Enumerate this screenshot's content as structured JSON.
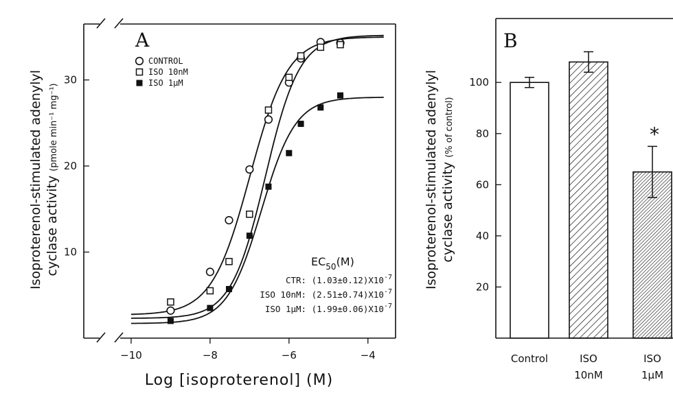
{
  "chart_data": [
    {
      "type": "scatter",
      "panel_label": "A",
      "xlabel": "Log [isoproterenol] (M)",
      "ylabel": "Isoproterenol-stimulated adenylyl",
      "ylabel2": "cyclase activity",
      "ylabel_units": "(pmole min⁻¹ mg⁻¹)",
      "xlim": [
        -11.2,
        -3.3
      ],
      "ylim": [
        0,
        36.5
      ],
      "x_ticks": [
        -10,
        -8,
        -6,
        -4
      ],
      "y_ticks": [
        10,
        20,
        30
      ],
      "axis_break": true,
      "legend_position": "top-left",
      "series": [
        {
          "name": "CONTROL",
          "marker": "open-circle",
          "x": [
            -9,
            -8,
            -7.52,
            -7,
            -6.52,
            -6,
            -5.7,
            -5.2,
            -4.7
          ],
          "y": [
            3.2,
            7.7,
            13.7,
            19.6,
            25.4,
            29.7,
            32.5,
            34.4,
            34.3
          ],
          "fit": {
            "bottom": 2.7,
            "top": 35.0,
            "logEC50": -6.99,
            "slope": 0.9
          }
        },
        {
          "name": "ISO 10nM",
          "marker": "open-square",
          "x": [
            -9,
            -8,
            -7.52,
            -7,
            -6.52,
            -6,
            -5.7,
            -5.2,
            -4.7
          ],
          "y": [
            4.2,
            5.5,
            8.9,
            14.4,
            26.5,
            30.3,
            32.8,
            33.8,
            34.1
          ],
          "fit": {
            "bottom": 2.3,
            "top": 35.2,
            "logEC50": -6.6,
            "slope": 1.0
          }
        },
        {
          "name": "ISO 1μM",
          "marker": "filled-square",
          "x": [
            -9,
            -8,
            -7.52,
            -7,
            -6.52,
            -6,
            -5.7,
            -5.2,
            -4.7
          ],
          "y": [
            2.0,
            3.5,
            5.7,
            11.9,
            17.6,
            21.5,
            24.9,
            26.8,
            28.2
          ],
          "fit": {
            "bottom": 1.7,
            "top": 28.0,
            "logEC50": -6.7,
            "slope": 1.0
          }
        }
      ],
      "annotation": {
        "title": "EC",
        "title_sub": "50",
        "title_unit": "(M)",
        "lines": [
          {
            "label": "CTR: ",
            "value": "(1.03±0.12)X10",
            "exp": "-7"
          },
          {
            "label": "ISO 10nM: ",
            "value": "(2.51±0.74)X10",
            "exp": "-7"
          },
          {
            "label": "ISO 1μM: ",
            "value": "(1.99±0.06)X10",
            "exp": "-7"
          }
        ]
      }
    },
    {
      "type": "bar",
      "panel_label": "B",
      "ylabel": "Isoproterenol-stimulated adenylyl",
      "ylabel2": "cyclase activity",
      "ylabel_units": "(% of control)",
      "ylim": [
        0,
        125
      ],
      "y_ticks": [
        20,
        40,
        60,
        80,
        100
      ],
      "categories": [
        "Control",
        "ISO\n10nM",
        "ISO\n1μM"
      ],
      "values": [
        100,
        108,
        65
      ],
      "errors": [
        2,
        4,
        10
      ],
      "patterns": [
        "open",
        "hatch-sparse",
        "hatch-dense"
      ],
      "significance": [
        "",
        "",
        "*"
      ]
    }
  ]
}
